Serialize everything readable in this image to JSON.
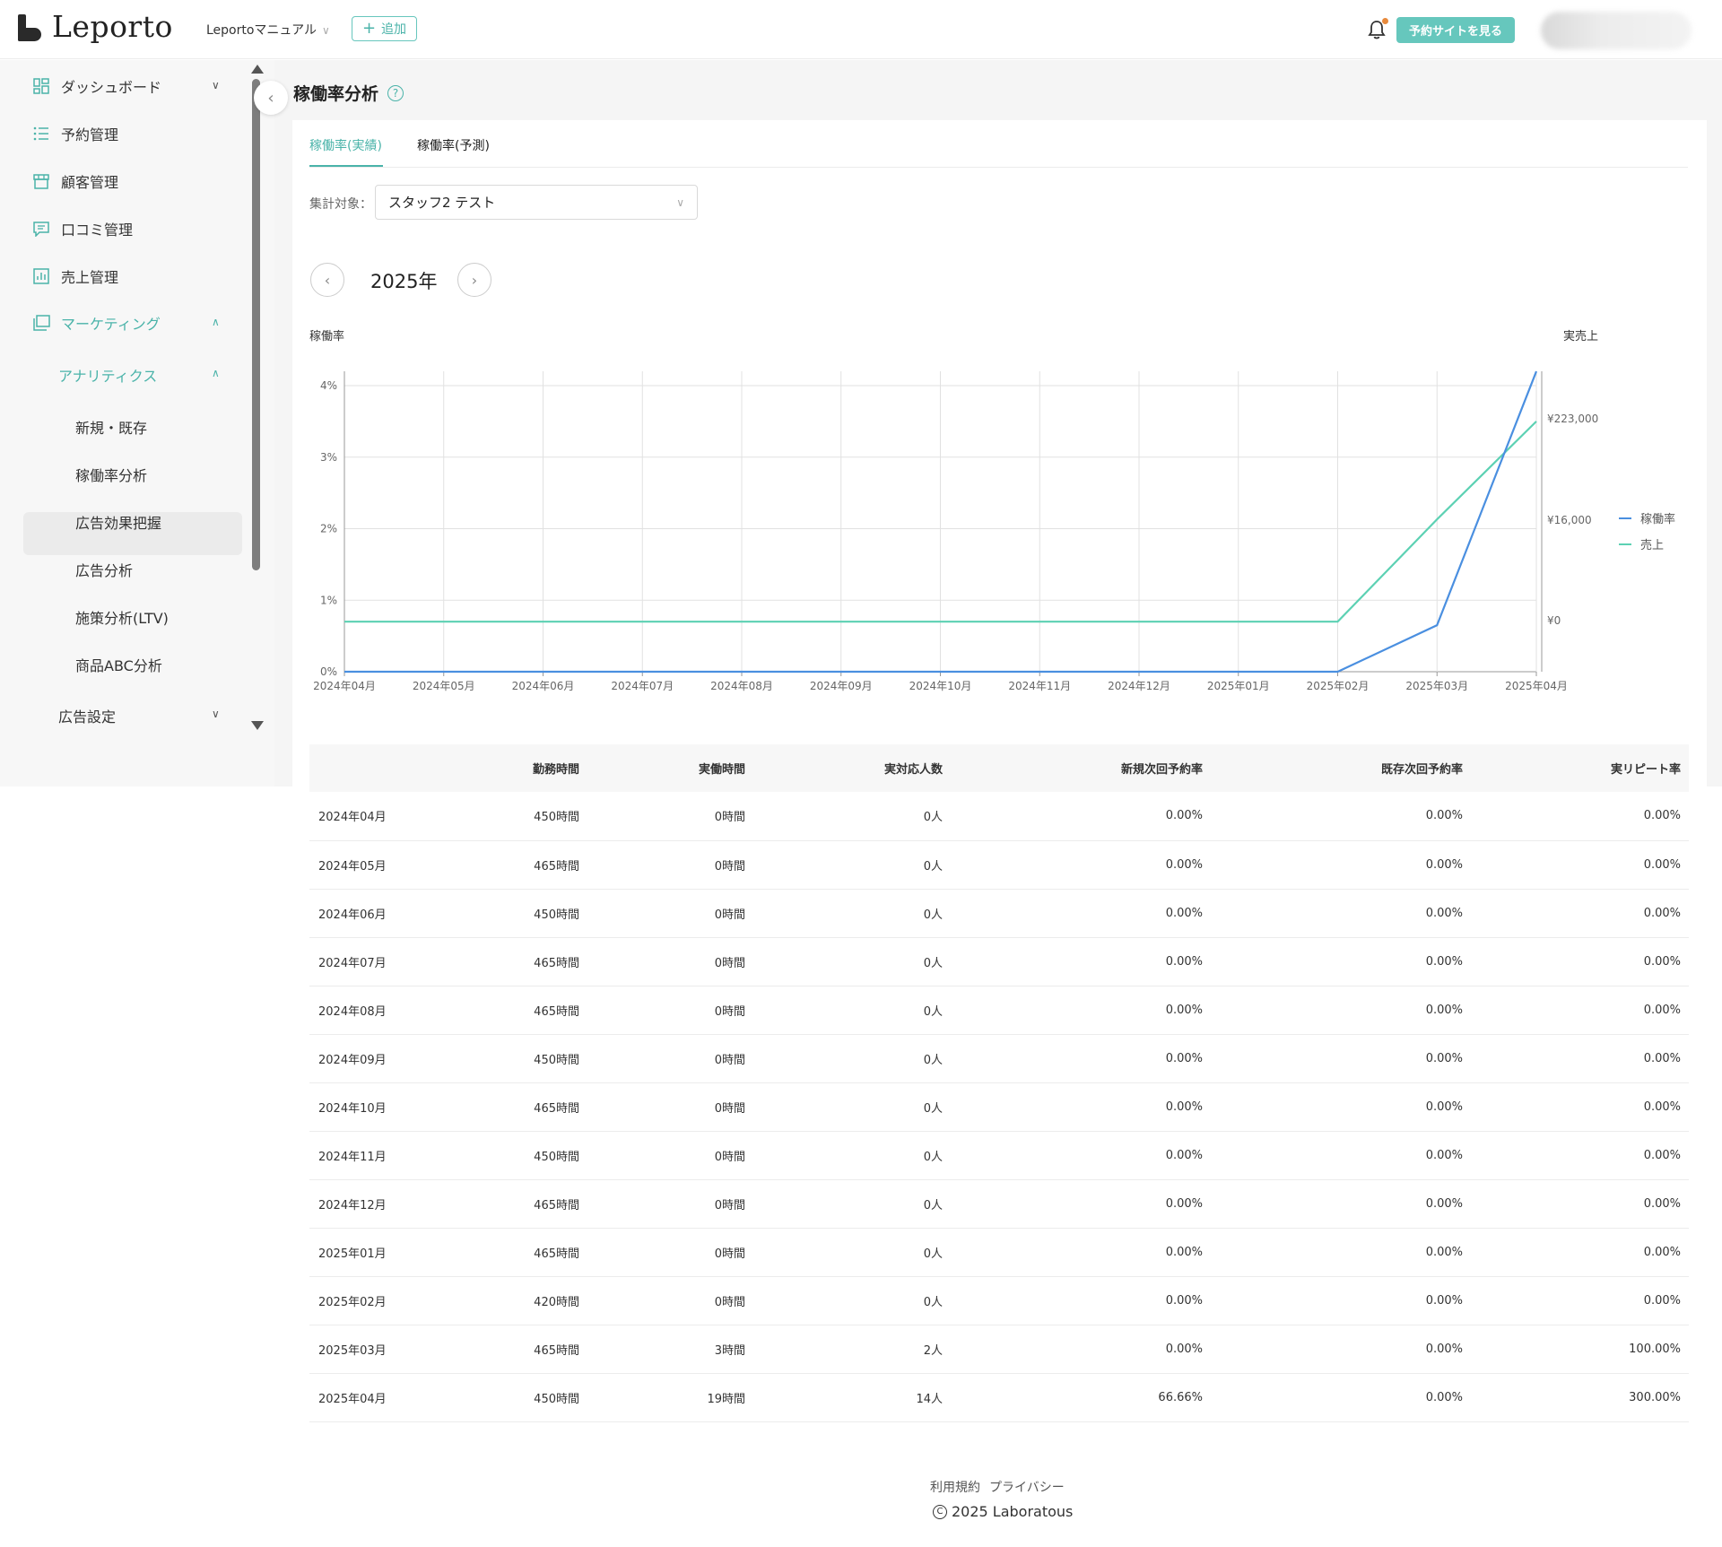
{
  "header": {
    "logo_text": "Leporto",
    "shop_name": "Leportoマニュアル",
    "add_label": "追加",
    "site_button": "予約サイトを見る"
  },
  "sidebar": {
    "items": [
      {
        "label": "ダッシュボード",
        "icon": "dashboard-icon"
      },
      {
        "label": "予約管理",
        "icon": "list-icon"
      },
      {
        "label": "顧客管理",
        "icon": "store-icon"
      },
      {
        "label": "口コミ管理",
        "icon": "comment-icon"
      },
      {
        "label": "売上管理",
        "icon": "bar-chart-icon"
      },
      {
        "label": "マーケティング",
        "icon": "layers-icon"
      }
    ],
    "analytics_label": "アナリティクス",
    "sub_items": [
      "新規・既存",
      "稼働率分析",
      "広告効果把握",
      "広告分析",
      "施策分析(LTV)",
      "商品ABC分析"
    ],
    "ad_settings": "広告設定"
  },
  "page": {
    "title": "稼働率分析",
    "tabs": [
      "稼働率(実績)",
      "稼働率(予測)"
    ],
    "filter_label": "集計対象：",
    "filter_value": "スタッフ2 テスト",
    "year": "2025年",
    "left_axis_title": "稼働率",
    "right_axis_title": "実売上"
  },
  "chart_data": {
    "type": "line",
    "x": [
      "2024年04月",
      "2024年05月",
      "2024年06月",
      "2024年07月",
      "2024年08月",
      "2024年09月",
      "2024年10月",
      "2024年11月",
      "2024年12月",
      "2025年01月",
      "2025年02月",
      "2025年03月",
      "2025年04月"
    ],
    "y_left_ticks": [
      "0%",
      "1%",
      "2%",
      "3%",
      "4%"
    ],
    "y_right_ticks": [
      "¥0",
      "¥16,000",
      "¥223,000"
    ],
    "ylim_left": [
      0,
      4
    ],
    "series": [
      {
        "name": "稼働率",
        "axis": "left",
        "color": "#4a8fe0",
        "values": [
          0,
          0,
          0,
          0,
          0,
          0,
          0,
          0,
          0,
          0,
          0,
          0.65,
          4.2
        ]
      },
      {
        "name": "売上",
        "axis": "right",
        "color": "#5cd1b3",
        "values_norm": [
          0.7,
          0.7,
          0.7,
          0.7,
          0.7,
          0.7,
          0.7,
          0.7,
          0.7,
          0.7,
          0.7,
          2.13,
          3.5
        ]
      }
    ],
    "legend": "right",
    "grid": true
  },
  "table": {
    "headers": [
      "",
      "勤務時間",
      "実働時間",
      "実対応人数",
      "新規次回予約率",
      "既存次回予約率",
      "実リピート率"
    ],
    "rows": [
      [
        "2024年04月",
        "450時間",
        "0時間",
        "0人",
        "0.00%",
        "0.00%",
        "0.00%"
      ],
      [
        "2024年05月",
        "465時間",
        "0時間",
        "0人",
        "0.00%",
        "0.00%",
        "0.00%"
      ],
      [
        "2024年06月",
        "450時間",
        "0時間",
        "0人",
        "0.00%",
        "0.00%",
        "0.00%"
      ],
      [
        "2024年07月",
        "465時間",
        "0時間",
        "0人",
        "0.00%",
        "0.00%",
        "0.00%"
      ],
      [
        "2024年08月",
        "465時間",
        "0時間",
        "0人",
        "0.00%",
        "0.00%",
        "0.00%"
      ],
      [
        "2024年09月",
        "450時間",
        "0時間",
        "0人",
        "0.00%",
        "0.00%",
        "0.00%"
      ],
      [
        "2024年10月",
        "465時間",
        "0時間",
        "0人",
        "0.00%",
        "0.00%",
        "0.00%"
      ],
      [
        "2024年11月",
        "450時間",
        "0時間",
        "0人",
        "0.00%",
        "0.00%",
        "0.00%"
      ],
      [
        "2024年12月",
        "465時間",
        "0時間",
        "0人",
        "0.00%",
        "0.00%",
        "0.00%"
      ],
      [
        "2025年01月",
        "465時間",
        "0時間",
        "0人",
        "0.00%",
        "0.00%",
        "0.00%"
      ],
      [
        "2025年02月",
        "420時間",
        "0時間",
        "0人",
        "0.00%",
        "0.00%",
        "0.00%"
      ],
      [
        "2025年03月",
        "465時間",
        "3時間",
        "2人",
        "0.00%",
        "0.00%",
        "100.00%"
      ],
      [
        "2025年04月",
        "450時間",
        "19時間",
        "14人",
        "66.66%",
        "0.00%",
        "300.00%"
      ]
    ]
  },
  "footer": {
    "terms": "利用規約",
    "privacy": "プライバシー",
    "copyright": "2025 Laboratous"
  }
}
